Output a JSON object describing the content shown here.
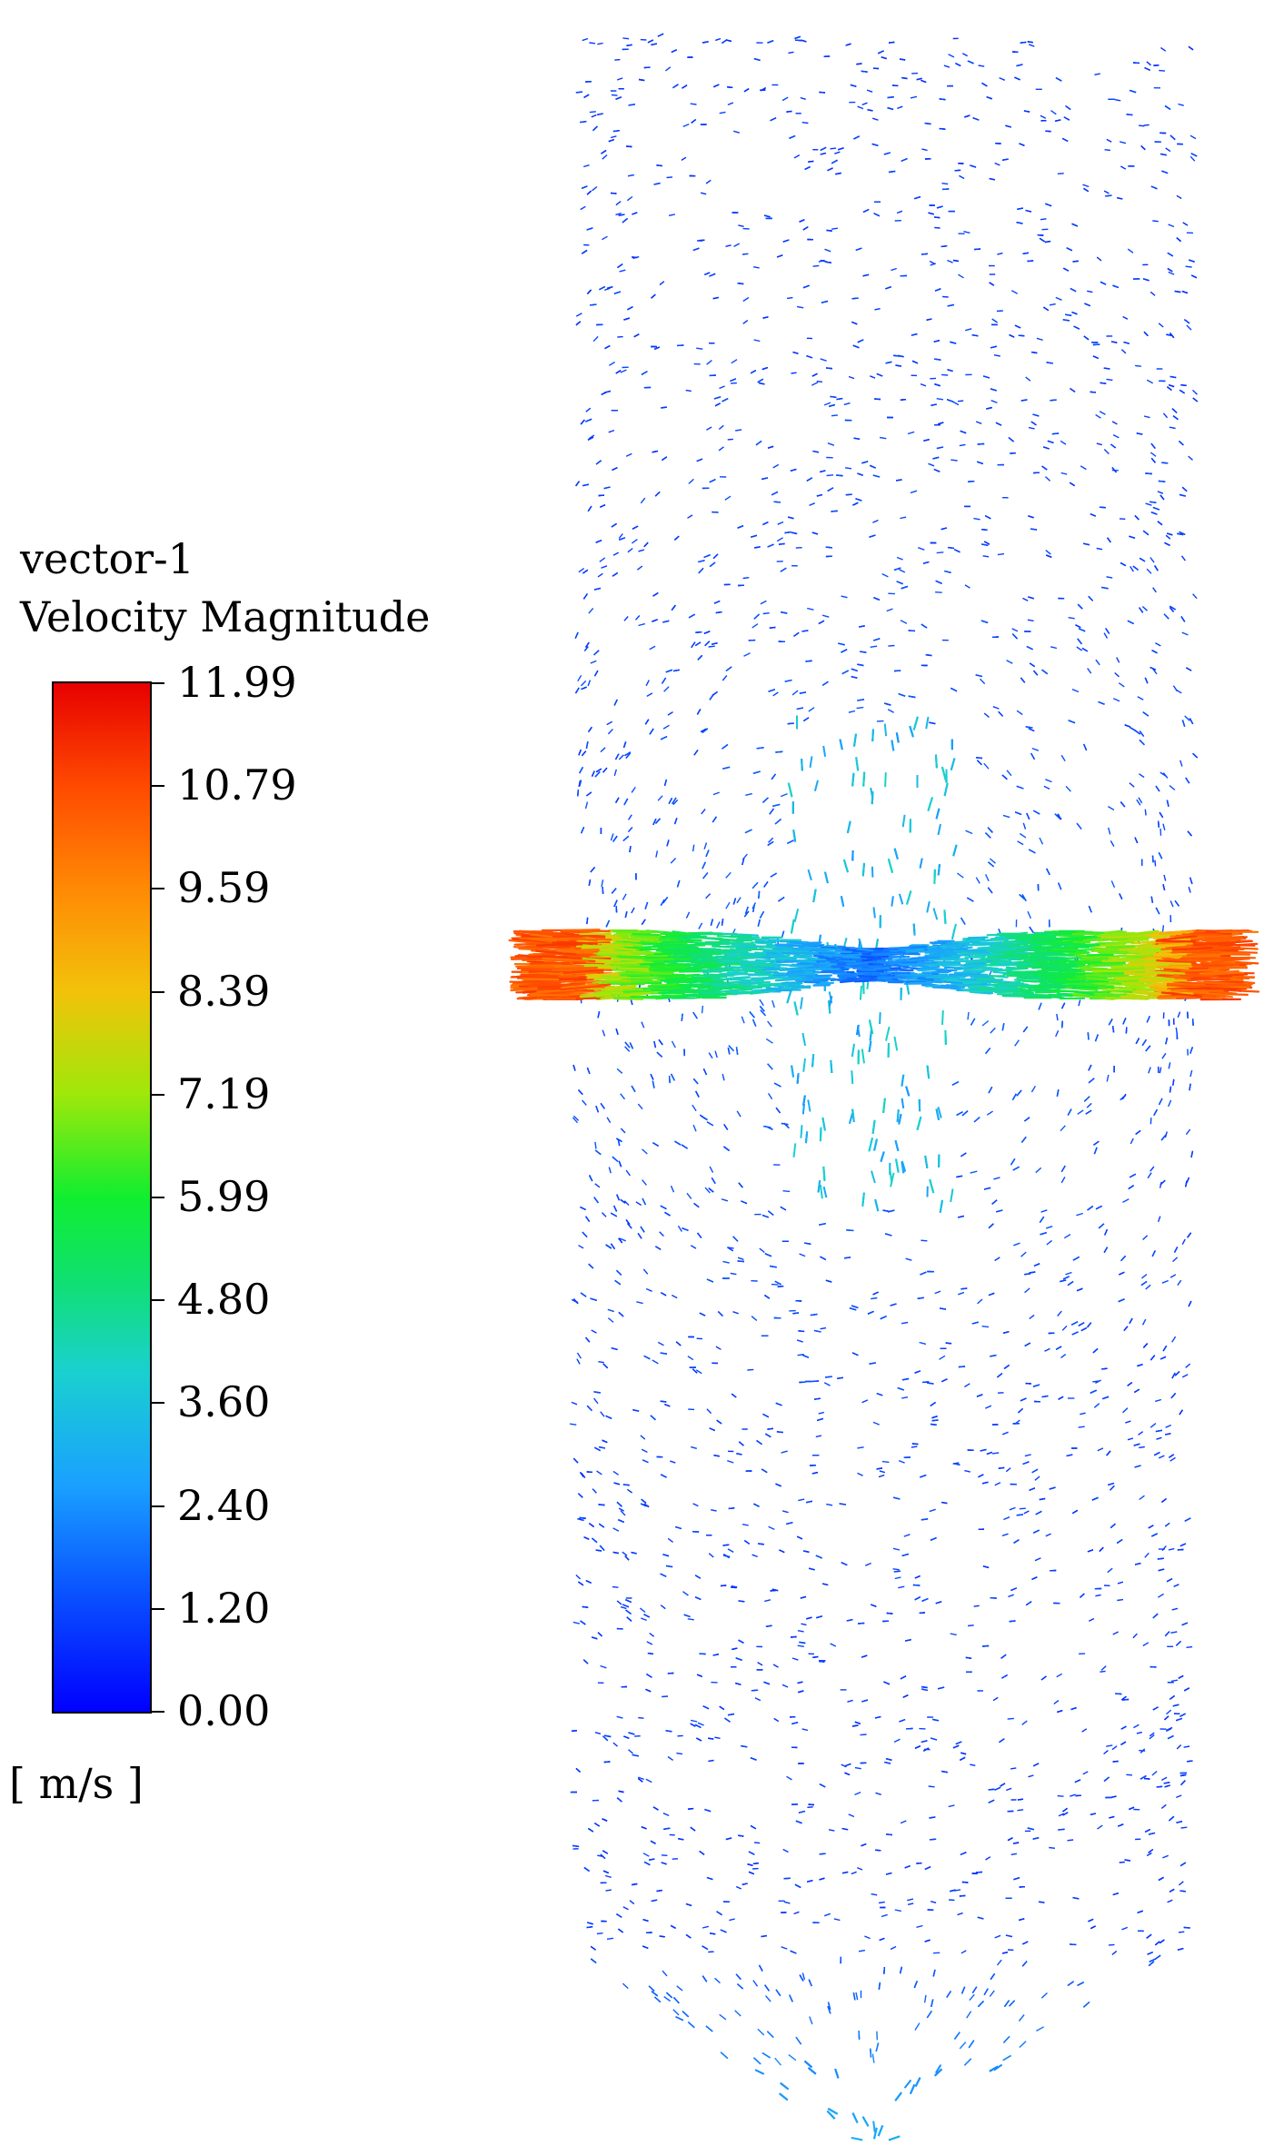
{
  "legend": {
    "title_line1": "vector-1",
    "title_line2": "Velocity Magnitude",
    "unit": "[ m/s ]",
    "ticks": [
      "11.99",
      "10.79",
      "9.59",
      "8.39",
      "7.19",
      "5.99",
      "4.80",
      "3.60",
      "2.40",
      "1.20",
      "0.00"
    ],
    "colormap_stops": [
      "#0000ff",
      "#0a55ff",
      "#1aa0ff",
      "#1ad0d0",
      "#10e070",
      "#10ee30",
      "#9fe80a",
      "#f2c20a",
      "#ff8a05",
      "#ff4a00",
      "#e80000"
    ]
  },
  "field": {
    "min_value": 0.0,
    "max_value": 11.99,
    "jet_peak_value": 10.5,
    "background_value": 0.6
  }
}
